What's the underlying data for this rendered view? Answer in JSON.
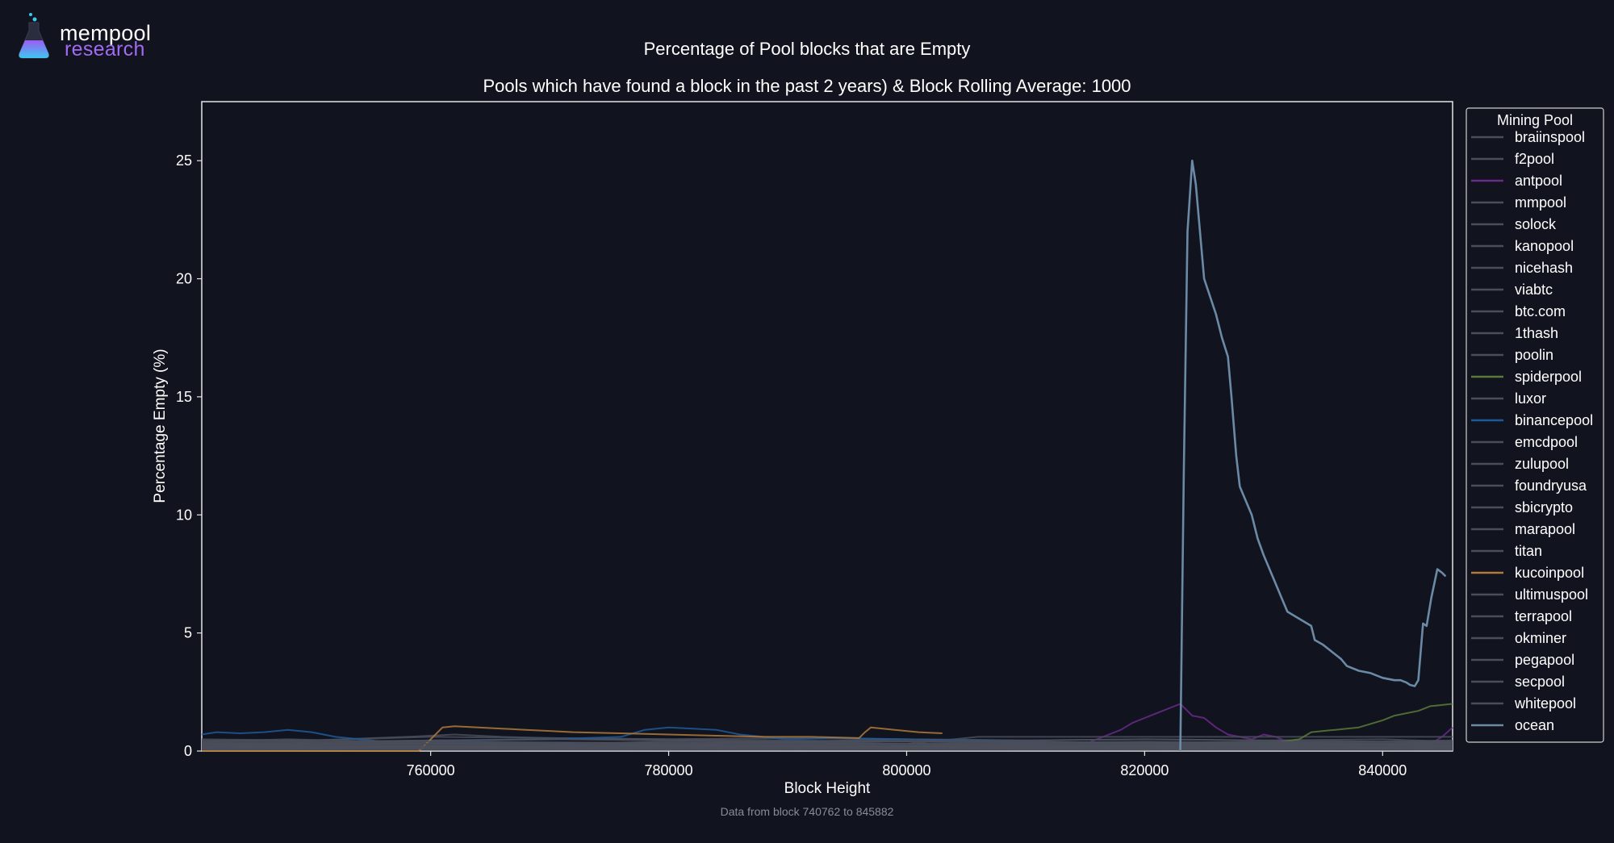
{
  "logo": {
    "word1": "mempool",
    "word2": "research"
  },
  "chart_data": {
    "type": "line",
    "title": "Percentage of Pool blocks that are Empty",
    "subtitle": "Pools which have found a block in the past 2 years) & Block Rolling Average: 1000",
    "xlabel": "Block Height",
    "ylabel": "Percentage Empty (%)",
    "xlim": [
      740762,
      845882
    ],
    "ylim": [
      0,
      27.5
    ],
    "xticks": [
      760000,
      780000,
      800000,
      820000,
      840000
    ],
    "yticks": [
      0,
      5,
      10,
      15,
      20,
      25
    ],
    "grid": false,
    "legend_title": "Mining Pool",
    "legend_position": "right",
    "footnote": "Data from block 740762 to 845882",
    "series": [
      {
        "name": "braiinspool",
        "color": "#4a4e5a",
        "x": [
          740762,
          745000,
          750000,
          760000,
          770000,
          780000,
          790000,
          800000,
          810000,
          820000,
          830000,
          840000,
          845882
        ],
        "y": [
          0.3,
          0.25,
          0.3,
          0.35,
          0.3,
          0.4,
          0.35,
          0.3,
          0.3,
          0.35,
          0.3,
          0.25,
          0.3
        ]
      },
      {
        "name": "f2pool",
        "color": "#4a4e5a",
        "x": [
          740762,
          748000,
          756000,
          764000,
          772000,
          780000,
          790000,
          800000,
          810000,
          820000,
          830000,
          840000,
          845882
        ],
        "y": [
          0.4,
          0.5,
          0.4,
          0.45,
          0.5,
          0.45,
          0.4,
          0.5,
          0.45,
          0.5,
          0.45,
          0.5,
          0.4
        ]
      },
      {
        "name": "antpool",
        "color": "#6a2a8a",
        "x": [
          740762,
          760000,
          780000,
          800000,
          815000,
          817000,
          818000,
          819000,
          820000,
          821000,
          822000,
          823000,
          824000,
          825000,
          826000,
          827000,
          828000,
          829000,
          830000,
          831000,
          832000,
          834000,
          836000,
          838000,
          840000,
          842000,
          844000,
          845000,
          845882
        ],
        "y": [
          0.2,
          0.2,
          0.25,
          0.2,
          0.3,
          0.7,
          0.9,
          1.2,
          1.4,
          1.6,
          1.8,
          2.0,
          1.5,
          1.4,
          1.0,
          0.7,
          0.6,
          0.5,
          0.7,
          0.6,
          0.4,
          0.3,
          0.3,
          0.25,
          0.3,
          0.25,
          0.3,
          0.6,
          1.0
        ]
      },
      {
        "name": "mmpool",
        "color": "#4a4e5a",
        "x": [
          740762,
          760000,
          780000,
          800000,
          820000,
          840000,
          845882
        ],
        "y": [
          0.1,
          0.1,
          0.15,
          0.1,
          0.1,
          0.1,
          0.1
        ]
      },
      {
        "name": "solock",
        "color": "#4a4e5a",
        "x": [
          740762,
          760000,
          780000,
          800000,
          820000,
          840000,
          845882
        ],
        "y": [
          0.15,
          0.2,
          0.15,
          0.2,
          0.15,
          0.2,
          0.15
        ]
      },
      {
        "name": "kanopool",
        "color": "#4a4e5a",
        "x": [
          740762,
          760000,
          780000,
          800000,
          820000,
          840000,
          845882
        ],
        "y": [
          0.05,
          0.05,
          0.05,
          0.05,
          0.05,
          0.05,
          0.05
        ]
      },
      {
        "name": "nicehash",
        "color": "#4a4e5a",
        "x": [
          740762,
          760000,
          780000,
          800000,
          820000,
          840000,
          845882
        ],
        "y": [
          0.35,
          0.3,
          0.35,
          0.3,
          0.35,
          0.3,
          0.35
        ]
      },
      {
        "name": "viabtc",
        "color": "#4a4e5a",
        "x": [
          740762,
          750000,
          760000,
          770000,
          780000,
          790000,
          800000,
          810000,
          820000,
          830000,
          840000,
          845882
        ],
        "y": [
          0.5,
          0.45,
          0.6,
          0.55,
          0.5,
          0.55,
          0.5,
          0.45,
          0.5,
          0.45,
          0.4,
          0.45
        ]
      },
      {
        "name": "btc.com",
        "color": "#4a4e5a",
        "x": [
          740762,
          750000,
          760000,
          770000,
          780000,
          790000,
          800000,
          806000,
          810000,
          820000,
          830000,
          840000,
          845882
        ],
        "y": [
          0.3,
          0.3,
          0.35,
          0.3,
          0.3,
          0.35,
          0.3,
          0.6,
          0.6,
          0.6,
          0.6,
          0.6,
          0.6
        ]
      },
      {
        "name": "1thash",
        "color": "#4a4e5a",
        "x": [
          740762,
          760000,
          780000,
          800000,
          820000,
          840000,
          845882
        ],
        "y": [
          0.25,
          0.2,
          0.25,
          0.2,
          0.25,
          0.2,
          0.25
        ]
      },
      {
        "name": "poolin",
        "color": "#4a4e5a",
        "x": [
          740762,
          750000,
          758000,
          762000,
          766000,
          770000,
          780000,
          790000,
          800000,
          810000,
          820000,
          830000,
          840000,
          845882
        ],
        "y": [
          0.4,
          0.45,
          0.6,
          0.7,
          0.6,
          0.55,
          0.5,
          0.45,
          0.4,
          0.35,
          0.4,
          0.35,
          0.3,
          0.35
        ]
      },
      {
        "name": "spiderpool",
        "color": "#5a7a3a",
        "x": [
          740762,
          800000,
          820000,
          830000,
          833000,
          834000,
          836000,
          838000,
          840000,
          841000,
          843000,
          844000,
          845000,
          845882
        ],
        "y": [
          0.2,
          0.2,
          0.2,
          0.3,
          0.5,
          0.8,
          0.9,
          1.0,
          1.3,
          1.5,
          1.7,
          1.9,
          1.95,
          2.0
        ]
      },
      {
        "name": "luxor",
        "color": "#4a4e5a",
        "x": [
          740762,
          760000,
          780000,
          800000,
          820000,
          840000,
          845882
        ],
        "y": [
          0.2,
          0.15,
          0.2,
          0.15,
          0.2,
          0.15,
          0.2
        ]
      },
      {
        "name": "binancepool",
        "color": "#1e5a9a",
        "x": [
          740762,
          742000,
          744000,
          746000,
          748000,
          750000,
          752000,
          754000,
          756000,
          760000,
          770000,
          776000,
          778000,
          780000,
          782000,
          784000,
          786000,
          790000,
          794000,
          800000,
          810000,
          820000,
          830000,
          840000,
          845882
        ],
        "y": [
          0.7,
          0.8,
          0.75,
          0.8,
          0.9,
          0.8,
          0.6,
          0.5,
          0.4,
          0.45,
          0.5,
          0.6,
          0.9,
          1.0,
          0.95,
          0.9,
          0.7,
          0.5,
          0.55,
          0.5,
          0.4,
          0.3,
          0.3,
          0.3,
          0.35
        ]
      },
      {
        "name": "emcdpool",
        "color": "#4a4e5a",
        "x": [
          740762,
          760000,
          780000,
          800000,
          820000,
          840000,
          845882
        ],
        "y": [
          0.1,
          0.15,
          0.1,
          0.15,
          0.1,
          0.15,
          0.1
        ]
      },
      {
        "name": "zulupool",
        "color": "#4a4e5a",
        "x": [
          740762,
          760000,
          780000,
          800000,
          820000,
          840000,
          845882
        ],
        "y": [
          0.05,
          0.1,
          0.05,
          0.1,
          0.05,
          0.1,
          0.05
        ]
      },
      {
        "name": "foundryusa",
        "color": "#4a4e5a",
        "x": [
          740762,
          750000,
          760000,
          770000,
          780000,
          790000,
          800000,
          810000,
          820000,
          830000,
          840000,
          845882
        ],
        "y": [
          0.45,
          0.4,
          0.45,
          0.5,
          0.45,
          0.4,
          0.45,
          0.4,
          0.35,
          0.4,
          0.35,
          0.4
        ]
      },
      {
        "name": "sbicrypto",
        "color": "#4a4e5a",
        "x": [
          740762,
          760000,
          780000,
          800000,
          820000,
          840000,
          845882
        ],
        "y": [
          0.2,
          0.25,
          0.2,
          0.25,
          0.2,
          0.25,
          0.2
        ]
      },
      {
        "name": "marapool",
        "color": "#4a4e5a",
        "x": [
          740762,
          750000,
          760000,
          770000,
          780000,
          790000,
          800000,
          810000,
          820000,
          830000,
          840000,
          845882
        ],
        "y": [
          0.3,
          0.35,
          0.4,
          0.35,
          0.3,
          0.35,
          0.4,
          0.35,
          0.3,
          0.35,
          0.3,
          0.35
        ]
      },
      {
        "name": "titan",
        "color": "#4a4e5a",
        "x": [
          740762,
          760000,
          780000,
          800000,
          820000,
          840000,
          845882
        ],
        "y": [
          0.15,
          0.1,
          0.15,
          0.1,
          0.15,
          0.1,
          0.15
        ]
      },
      {
        "name": "kucoinpool",
        "color": "#b07a3a",
        "x": [
          740762,
          759000,
          760000,
          761000,
          762000,
          764000,
          766000,
          768000,
          770000,
          772000,
          776000,
          780000,
          784000,
          788000,
          792000,
          796000,
          796500,
          797000,
          799000,
          801000,
          803000
        ],
        "y": [
          0.0,
          0.0,
          0.5,
          1.0,
          1.05,
          1.0,
          0.95,
          0.9,
          0.85,
          0.8,
          0.75,
          0.7,
          0.65,
          0.6,
          0.6,
          0.55,
          0.8,
          1.0,
          0.9,
          0.8,
          0.75
        ]
      },
      {
        "name": "ultimuspool",
        "color": "#4a4e5a",
        "x": [
          740762,
          760000,
          780000,
          800000,
          820000,
          840000,
          845882
        ],
        "y": [
          0.25,
          0.3,
          0.25,
          0.3,
          0.25,
          0.3,
          0.25
        ]
      },
      {
        "name": "terrapool",
        "color": "#4a4e5a",
        "x": [
          740762,
          760000,
          780000,
          800000,
          820000,
          840000,
          845882
        ],
        "y": [
          0.1,
          0.1,
          0.1,
          0.1,
          0.1,
          0.1,
          0.1
        ]
      },
      {
        "name": "okminer",
        "color": "#4a4e5a",
        "x": [
          740762,
          760000,
          780000,
          800000,
          820000,
          840000,
          845882
        ],
        "y": [
          0.35,
          0.4,
          0.35,
          0.4,
          0.35,
          0.4,
          0.35
        ]
      },
      {
        "name": "pegapool",
        "color": "#4a4e5a",
        "x": [
          740762,
          760000,
          780000,
          800000,
          820000,
          840000,
          845882
        ],
        "y": [
          0.2,
          0.2,
          0.25,
          0.2,
          0.2,
          0.25,
          0.2
        ]
      },
      {
        "name": "secpool",
        "color": "#4a4e5a",
        "x": [
          740762,
          760000,
          780000,
          800000,
          820000,
          840000,
          845882
        ],
        "y": [
          0.3,
          0.3,
          0.3,
          0.3,
          0.3,
          0.3,
          0.3
        ]
      },
      {
        "name": "whitepool",
        "color": "#4a4e5a",
        "x": [
          740762,
          760000,
          780000,
          800000,
          820000,
          840000,
          845882
        ],
        "y": [
          0.15,
          0.15,
          0.15,
          0.15,
          0.15,
          0.15,
          0.15
        ]
      },
      {
        "name": "ocean",
        "color": "#6b8aa6",
        "x": [
          823000,
          823300,
          823600,
          824000,
          824300,
          825000,
          826000,
          826500,
          827000,
          827300,
          827700,
          828000,
          829000,
          829500,
          830000,
          830500,
          831000,
          831500,
          832000,
          833000,
          834000,
          834300,
          835000,
          835500,
          836000,
          836500,
          837000,
          838000,
          839000,
          840000,
          841000,
          841500,
          842000,
          842300,
          842700,
          843000,
          843400,
          843700,
          844100,
          844600,
          845000,
          845300
        ],
        "y": [
          0.0,
          12.0,
          22.0,
          25.0,
          24.0,
          20.0,
          18.5,
          17.5,
          16.7,
          15.0,
          12.5,
          11.2,
          10.0,
          9.0,
          8.3,
          7.7,
          7.1,
          6.5,
          5.9,
          5.6,
          5.3,
          4.7,
          4.5,
          4.3,
          4.1,
          3.9,
          3.6,
          3.4,
          3.3,
          3.1,
          3.0,
          3.0,
          2.9,
          2.8,
          2.75,
          3.0,
          5.4,
          5.3,
          6.5,
          7.7,
          7.55,
          7.4
        ]
      }
    ]
  }
}
